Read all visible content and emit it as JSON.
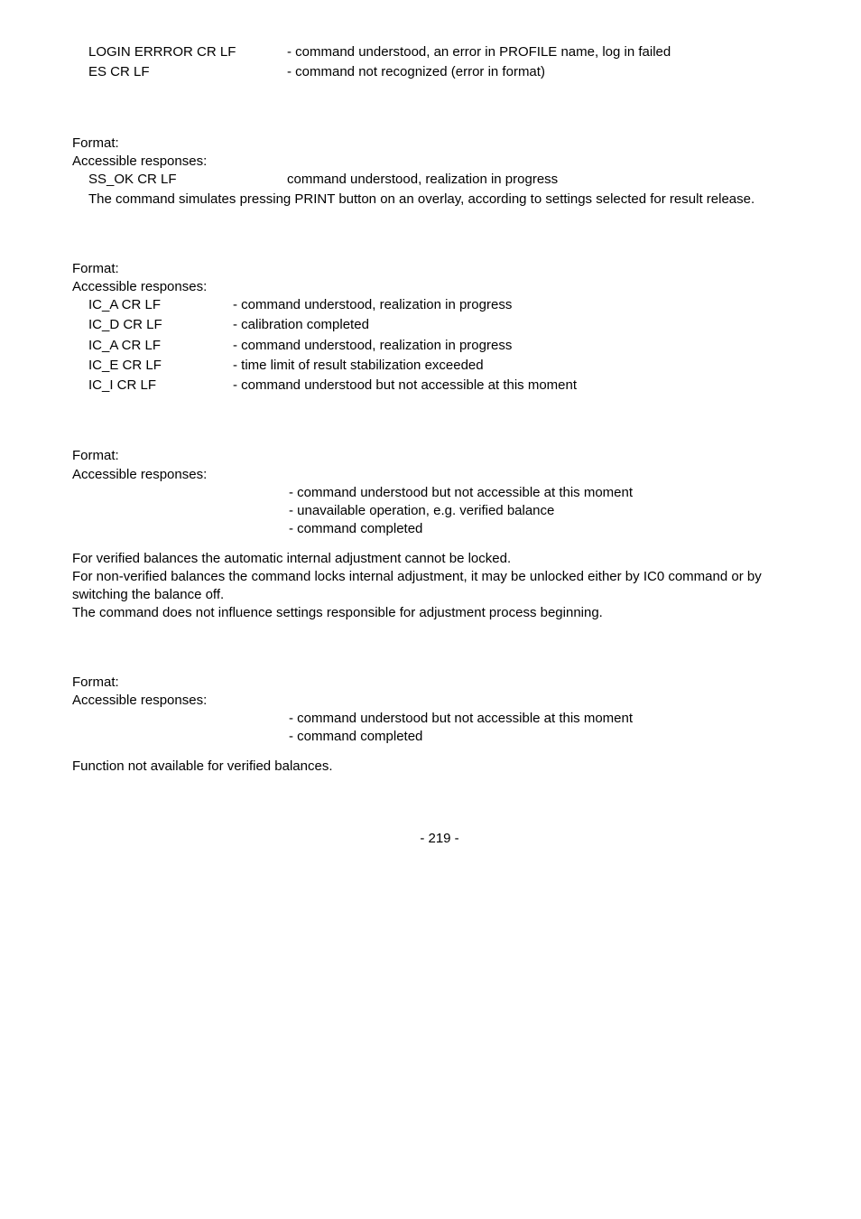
{
  "block1": {
    "rows": [
      {
        "k": "LOGIN ERRROR CR LF",
        "v": "- command understood, an error in PROFILE name, log in failed"
      },
      {
        "k": "ES CR LF",
        "v": "- command not recognized (error in format)"
      }
    ]
  },
  "block2": {
    "format": "Format:",
    "acc": "Accessible responses:",
    "row1k": "SS_OK CR LF",
    "row1v": "command understood, realization in progress",
    "body": "The command simulates pressing PRINT button on an overlay, according to settings selected for result release."
  },
  "block3": {
    "format": "Format:",
    "acc": "Accessible responses:",
    "rows": [
      {
        "k": "IC_A CR LF",
        "v": "- command understood, realization in progress"
      },
      {
        "k": "IC_D CR LF",
        "v": "- calibration completed"
      },
      {
        "k": "IC_A CR LF",
        "v": "- command understood, realization in progress"
      },
      {
        "k": "IC_E CR LF",
        "v": "- time limit of result stabilization exceeded"
      },
      {
        "k": "IC_I CR LF",
        "v": "- command understood but not accessible at this moment"
      }
    ]
  },
  "block4": {
    "format": "Format:",
    "acc": "Accessible responses:",
    "lines": [
      "- command understood but not accessible at this moment",
      "- unavailable operation, e.g. verified balance",
      "- command completed"
    ],
    "para1": "For verified balances the automatic internal adjustment cannot be locked.",
    "para2": "For non-verified balances the command locks internal adjustment, it may be unlocked either by IC0 command or by switching the balance off.",
    "para3": "The command does not influence settings responsible for adjustment process beginning."
  },
  "block5": {
    "format": "Format:",
    "acc": "Accessible responses:",
    "lines": [
      "- command understood but not accessible at this moment",
      "- command completed"
    ],
    "para": "Function not available for verified balances."
  },
  "page": "- 219 -"
}
